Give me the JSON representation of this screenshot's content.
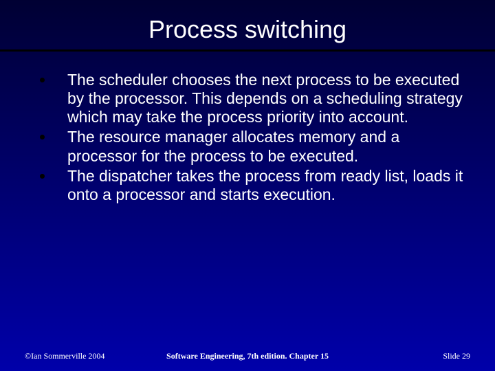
{
  "slide": {
    "background_gradient": {
      "top": "#000033",
      "bottom": "#0000aa",
      "type": "vertical-linear"
    },
    "title": {
      "text": "Process switching",
      "color": "#ffffff",
      "fontsize": 36
    },
    "rule_color": "#000000",
    "bullets": {
      "color": "#ffffff",
      "fontsize": 23,
      "bullet_marker_color": "#000000",
      "items": [
        "The scheduler chooses the next process to be executed by the processor. This depends on a scheduling strategy which may take the process priority into account.",
        "The resource manager allocates memory and a processor for the process to be executed.",
        "The dispatcher takes the process from ready list, loads it onto a processor and starts execution."
      ]
    },
    "footer": {
      "left": "©Ian Sommerville 2004",
      "center": "Software Engineering, 7th edition. Chapter 15",
      "right": "Slide 29",
      "color": "#ffffff",
      "fontsize": 12
    }
  }
}
